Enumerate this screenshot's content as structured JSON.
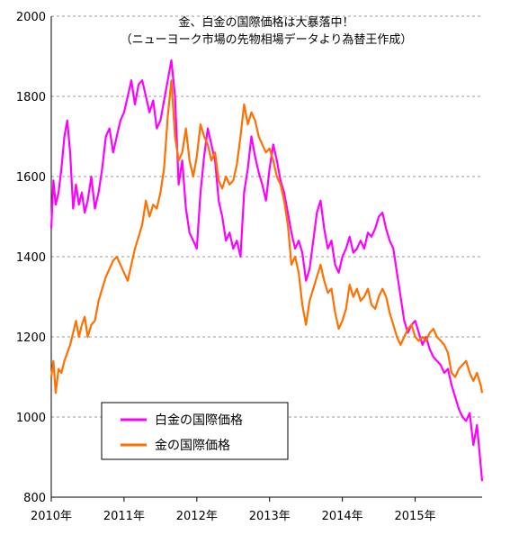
{
  "chart_data": {
    "type": "line",
    "title": "金、白金の国際価格は大暴落中！",
    "subtitle": "（ニューヨーク市場の先物相場データより為替王作成）",
    "xlabel": "",
    "ylabel": "",
    "ylim": [
      800,
      2000
    ],
    "yticks": [
      800,
      1000,
      1200,
      1400,
      1600,
      1800,
      2000
    ],
    "xlim": [
      2010.0,
      2015.92
    ],
    "xticks": [
      {
        "value": 2010,
        "label": "2010年"
      },
      {
        "value": 2011,
        "label": "2011年"
      },
      {
        "value": 2012,
        "label": "2012年"
      },
      {
        "value": 2013,
        "label": "2013年"
      },
      {
        "value": 2014,
        "label": "2014年"
      },
      {
        "value": 2015,
        "label": "2015年"
      }
    ],
    "grid": {
      "horizontal": true,
      "style": "dashed"
    },
    "legend": {
      "position": "bottom-left"
    },
    "series": [
      {
        "name": "白金の国際価格",
        "color": "#ff00ff",
        "x": [
          2010.0,
          2010.03,
          2010.06,
          2010.1,
          2010.14,
          2010.18,
          2010.22,
          2010.26,
          2010.3,
          2010.34,
          2010.38,
          2010.42,
          2010.46,
          2010.5,
          2010.55,
          2010.6,
          2010.65,
          2010.7,
          2010.75,
          2010.8,
          2010.85,
          2010.9,
          2010.95,
          2011.0,
          2011.05,
          2011.1,
          2011.15,
          2011.2,
          2011.25,
          2011.3,
          2011.35,
          2011.4,
          2011.45,
          2011.5,
          2011.55,
          2011.6,
          2011.65,
          2011.7,
          2011.75,
          2011.8,
          2011.85,
          2011.9,
          2011.95,
          2012.0,
          2012.05,
          2012.1,
          2012.15,
          2012.2,
          2012.25,
          2012.3,
          2012.35,
          2012.4,
          2012.45,
          2012.5,
          2012.55,
          2012.6,
          2012.65,
          2012.7,
          2012.75,
          2012.8,
          2012.85,
          2012.9,
          2012.95,
          2013.0,
          2013.05,
          2013.1,
          2013.15,
          2013.2,
          2013.25,
          2013.3,
          2013.35,
          2013.4,
          2013.45,
          2013.5,
          2013.55,
          2013.6,
          2013.65,
          2013.7,
          2013.75,
          2013.8,
          2013.85,
          2013.9,
          2013.95,
          2014.0,
          2014.05,
          2014.1,
          2014.15,
          2014.2,
          2014.25,
          2014.3,
          2014.35,
          2014.4,
          2014.45,
          2014.5,
          2014.55,
          2014.6,
          2014.65,
          2014.7,
          2014.75,
          2014.8,
          2014.85,
          2014.9,
          2014.95,
          2015.0,
          2015.05,
          2015.1,
          2015.15,
          2015.2,
          2015.25,
          2015.3,
          2015.35,
          2015.4,
          2015.45,
          2015.5,
          2015.55,
          2015.6,
          2015.65,
          2015.7,
          2015.75,
          2015.8,
          2015.85,
          2015.9,
          2015.92
        ],
        "values": [
          1470,
          1590,
          1530,
          1560,
          1620,
          1700,
          1740,
          1660,
          1520,
          1580,
          1530,
          1560,
          1510,
          1540,
          1600,
          1520,
          1560,
          1620,
          1700,
          1720,
          1660,
          1700,
          1740,
          1760,
          1800,
          1840,
          1780,
          1830,
          1840,
          1800,
          1760,
          1790,
          1720,
          1740,
          1790,
          1840,
          1890,
          1800,
          1580,
          1640,
          1520,
          1460,
          1440,
          1420,
          1560,
          1650,
          1720,
          1680,
          1640,
          1540,
          1500,
          1440,
          1460,
          1420,
          1440,
          1400,
          1560,
          1620,
          1700,
          1650,
          1610,
          1580,
          1540,
          1620,
          1680,
          1640,
          1590,
          1560,
          1510,
          1460,
          1420,
          1440,
          1410,
          1340,
          1370,
          1440,
          1510,
          1540,
          1470,
          1420,
          1440,
          1380,
          1360,
          1400,
          1420,
          1450,
          1410,
          1420,
          1440,
          1420,
          1460,
          1450,
          1470,
          1500,
          1510,
          1470,
          1440,
          1420,
          1360,
          1300,
          1240,
          1210,
          1230,
          1240,
          1210,
          1180,
          1200,
          1170,
          1150,
          1140,
          1130,
          1110,
          1120,
          1080,
          1050,
          1020,
          1000,
          990,
          1010,
          930,
          980,
          880,
          840
        ]
      },
      {
        "name": "金の国際価格",
        "color": "#ff7000",
        "x": [
          2010.0,
          2010.03,
          2010.06,
          2010.1,
          2010.14,
          2010.18,
          2010.22,
          2010.26,
          2010.3,
          2010.34,
          2010.38,
          2010.42,
          2010.46,
          2010.5,
          2010.55,
          2010.6,
          2010.65,
          2010.7,
          2010.75,
          2010.8,
          2010.85,
          2010.9,
          2010.95,
          2011.0,
          2011.05,
          2011.1,
          2011.15,
          2011.2,
          2011.25,
          2011.3,
          2011.35,
          2011.4,
          2011.45,
          2011.5,
          2011.55,
          2011.6,
          2011.65,
          2011.7,
          2011.75,
          2011.8,
          2011.85,
          2011.9,
          2011.95,
          2012.0,
          2012.05,
          2012.1,
          2012.15,
          2012.2,
          2012.25,
          2012.3,
          2012.35,
          2012.4,
          2012.45,
          2012.5,
          2012.55,
          2012.6,
          2012.65,
          2012.7,
          2012.75,
          2012.8,
          2012.85,
          2012.9,
          2012.95,
          2013.0,
          2013.05,
          2013.1,
          2013.15,
          2013.2,
          2013.25,
          2013.3,
          2013.35,
          2013.4,
          2013.45,
          2013.5,
          2013.55,
          2013.6,
          2013.65,
          2013.7,
          2013.75,
          2013.8,
          2013.85,
          2013.9,
          2013.95,
          2014.0,
          2014.05,
          2014.1,
          2014.15,
          2014.2,
          2014.25,
          2014.3,
          2014.35,
          2014.4,
          2014.45,
          2014.5,
          2014.55,
          2014.6,
          2014.65,
          2014.7,
          2014.75,
          2014.8,
          2014.85,
          2014.9,
          2014.95,
          2015.0,
          2015.05,
          2015.1,
          2015.15,
          2015.2,
          2015.25,
          2015.3,
          2015.35,
          2015.4,
          2015.45,
          2015.5,
          2015.55,
          2015.6,
          2015.65,
          2015.7,
          2015.75,
          2015.8,
          2015.85,
          2015.9,
          2015.92
        ],
        "values": [
          1100,
          1140,
          1060,
          1120,
          1110,
          1140,
          1160,
          1180,
          1210,
          1240,
          1200,
          1230,
          1250,
          1200,
          1230,
          1240,
          1290,
          1320,
          1350,
          1370,
          1390,
          1400,
          1380,
          1360,
          1340,
          1380,
          1420,
          1450,
          1480,
          1540,
          1500,
          1530,
          1520,
          1560,
          1620,
          1750,
          1840,
          1700,
          1640,
          1660,
          1720,
          1640,
          1600,
          1650,
          1730,
          1700,
          1680,
          1640,
          1660,
          1590,
          1570,
          1600,
          1580,
          1590,
          1630,
          1700,
          1780,
          1730,
          1760,
          1740,
          1700,
          1680,
          1660,
          1670,
          1640,
          1600,
          1580,
          1540,
          1480,
          1380,
          1400,
          1360,
          1280,
          1230,
          1290,
          1320,
          1350,
          1380,
          1340,
          1310,
          1320,
          1260,
          1220,
          1240,
          1270,
          1330,
          1300,
          1320,
          1290,
          1300,
          1320,
          1280,
          1270,
          1300,
          1320,
          1300,
          1260,
          1230,
          1200,
          1180,
          1200,
          1220,
          1230,
          1200,
          1190,
          1200,
          1190,
          1210,
          1220,
          1200,
          1190,
          1180,
          1160,
          1110,
          1100,
          1120,
          1130,
          1140,
          1110,
          1090,
          1110,
          1080,
          1060
        ]
      }
    ]
  }
}
